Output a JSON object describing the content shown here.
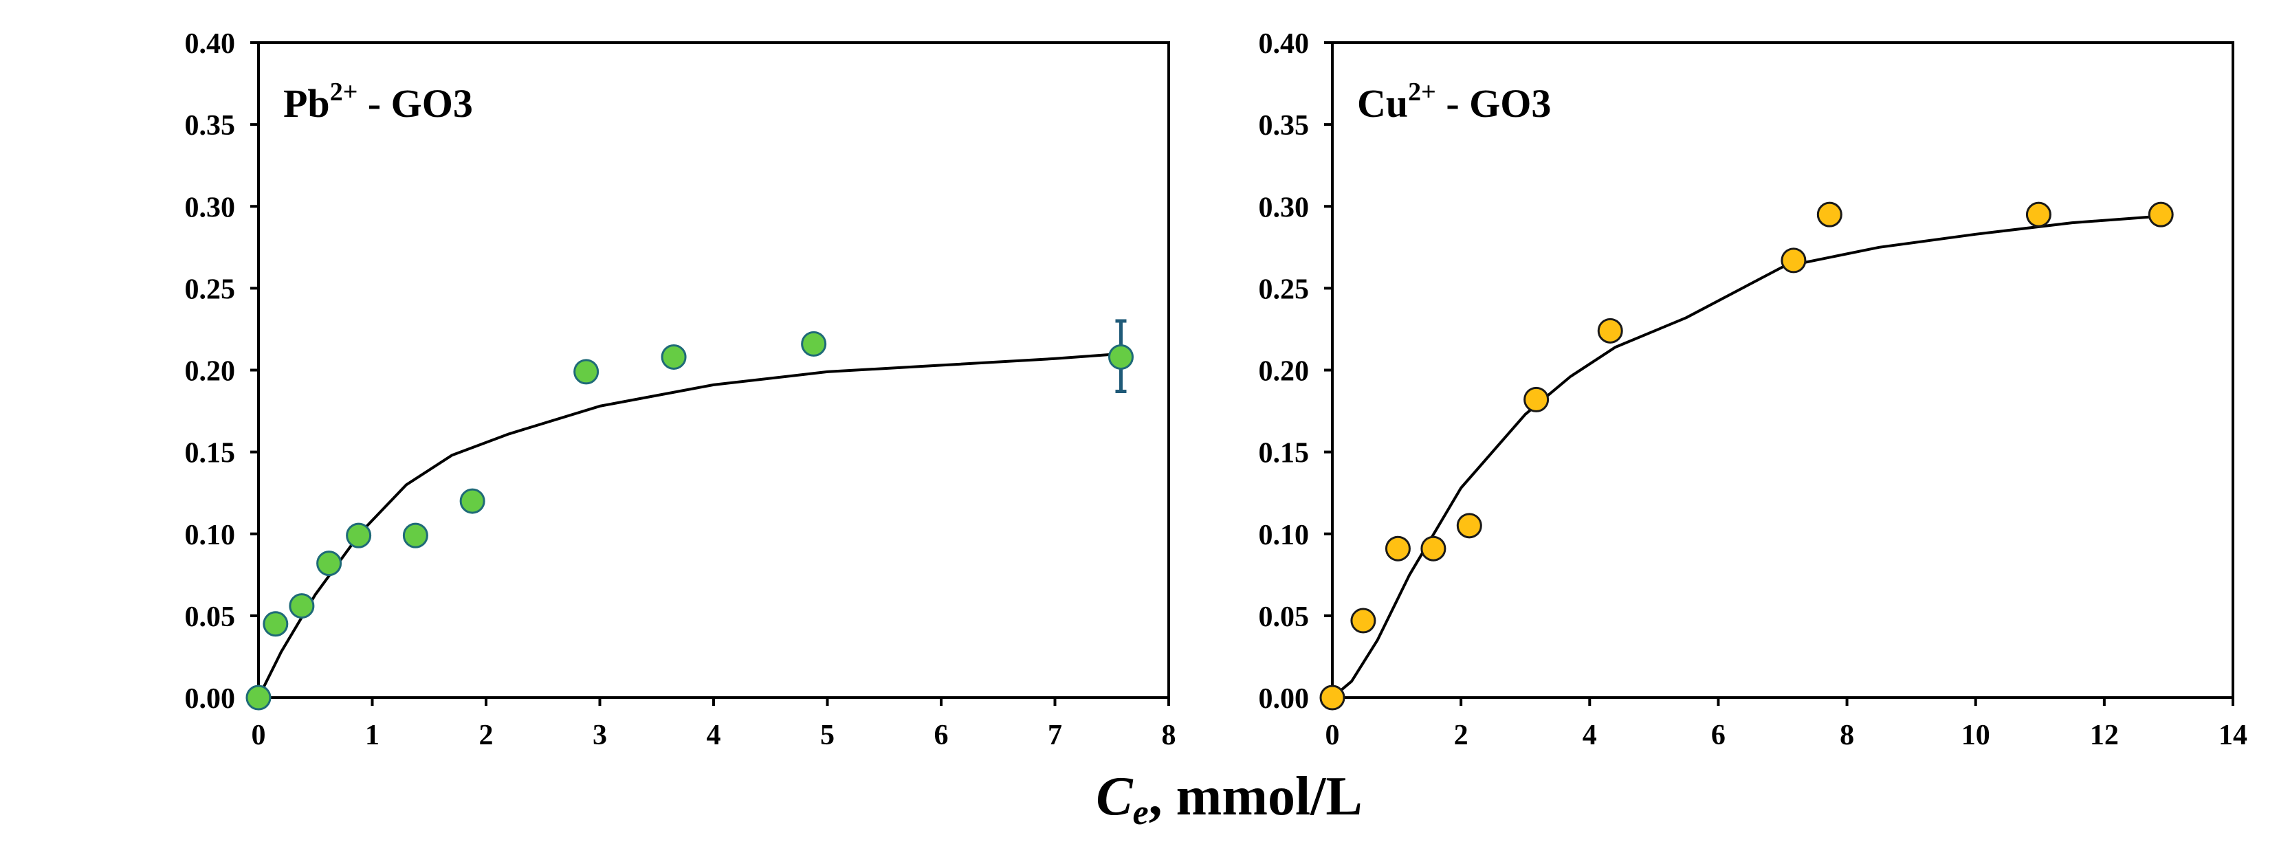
{
  "shared_xlabel": {
    "main": "C",
    "sub": "e",
    "rest": ", mmol/L"
  },
  "chart_data": [
    {
      "type": "scatter",
      "panel": "left",
      "title": {
        "main": "Pb",
        "sup": "2+",
        "rest": " - GO3"
      },
      "xlim": [
        0,
        8
      ],
      "ylim": [
        0,
        0.4
      ],
      "xticks": [
        0,
        1,
        2,
        3,
        4,
        5,
        6,
        7,
        8
      ],
      "yticks": [
        0.0,
        0.05,
        0.1,
        0.15,
        0.2,
        0.25,
        0.3,
        0.35,
        0.4
      ],
      "ytick_decimals": 2,
      "grid": false,
      "marker_color": "#66cc44",
      "marker_edge": "#1f6a78",
      "points": {
        "x": [
          0,
          0.15,
          0.38,
          0.62,
          0.88,
          1.38,
          1.88,
          2.88,
          3.65,
          4.88,
          7.58
        ],
        "y": [
          0,
          0.045,
          0.056,
          0.082,
          0.099,
          0.099,
          0.12,
          0.199,
          0.208,
          0.216,
          0.208
        ]
      },
      "error_bar": {
        "x": 7.58,
        "y": 0.208,
        "lower": 0.187,
        "upper": 0.23,
        "color": "#1f5a78"
      },
      "fit_curve": {
        "x": [
          0,
          0.2,
          0.5,
          0.9,
          1.3,
          1.7,
          2.2,
          3.0,
          4.0,
          5.0,
          6.0,
          7.0,
          7.58
        ],
        "y": [
          0,
          0.028,
          0.063,
          0.101,
          0.13,
          0.148,
          0.161,
          0.178,
          0.191,
          0.199,
          0.203,
          0.207,
          0.21
        ]
      }
    },
    {
      "type": "scatter",
      "panel": "right",
      "title": {
        "main": "Cu",
        "sup": "2+",
        "rest": " - GO3"
      },
      "xlim": [
        0,
        14
      ],
      "ylim": [
        0,
        0.4
      ],
      "xticks": [
        0,
        2,
        4,
        6,
        8,
        10,
        12,
        14
      ],
      "yticks": [
        0.0,
        0.05,
        0.1,
        0.15,
        0.2,
        0.25,
        0.3,
        0.35,
        0.4
      ],
      "ytick_decimals": 2,
      "grid": false,
      "marker_color": "#ffc012",
      "marker_edge": "#1a1a1a",
      "points": {
        "x": [
          0,
          0.48,
          1.02,
          1.57,
          2.13,
          3.17,
          4.32,
          7.17,
          7.73,
          10.98,
          12.88
        ],
        "y": [
          0,
          0.047,
          0.091,
          0.091,
          0.105,
          0.182,
          0.224,
          0.267,
          0.295,
          0.295,
          0.295
        ]
      },
      "fit_curve": {
        "x": [
          0,
          0.3,
          0.7,
          1.2,
          2.0,
          3.0,
          3.7,
          4.4,
          5.5,
          7.0,
          8.5,
          10.0,
          11.5,
          12.88
        ],
        "y": [
          0,
          0.01,
          0.035,
          0.075,
          0.128,
          0.173,
          0.196,
          0.214,
          0.232,
          0.263,
          0.275,
          0.283,
          0.29,
          0.294
        ]
      }
    }
  ]
}
